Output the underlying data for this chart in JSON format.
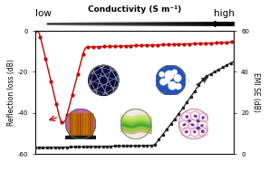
{
  "title": "Conductivity (S m⁻¹)",
  "left_ylabel": "Reflection loss (dB)",
  "right_ylabel": "EMI SE (dB)",
  "top_left_label": "low",
  "top_right_label": "high",
  "left_ylim": [
    -60,
    0
  ],
  "right_ylim": [
    0,
    60
  ],
  "left_yticks": [
    0,
    -20,
    -40,
    -60
  ],
  "right_yticks": [
    0,
    20,
    40,
    60
  ],
  "rl_color": "#cc0000",
  "emi_color": "#222222",
  "background": "#ffffff",
  "figsize": [
    2.97,
    1.89
  ],
  "dpi": 100,
  "n_points": 300
}
